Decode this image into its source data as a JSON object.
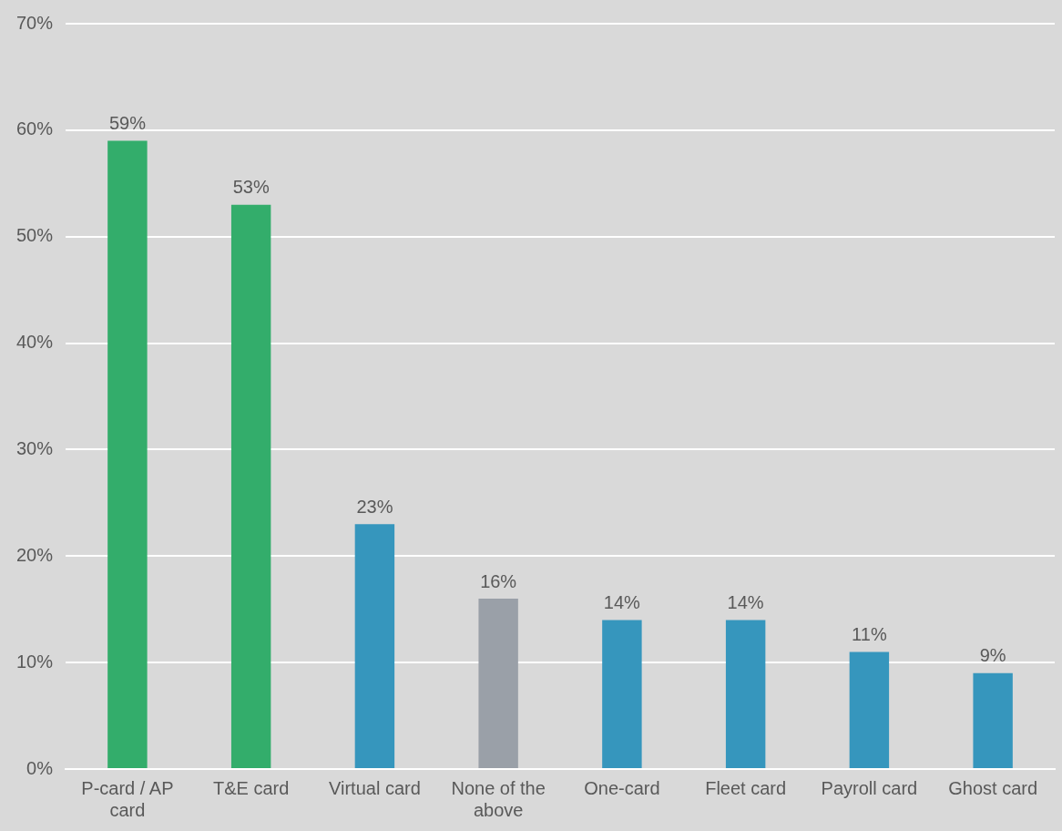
{
  "chart_data": {
    "type": "bar",
    "categories": [
      "P-card / AP card",
      "T&E card",
      "Virtual card",
      "None of the above",
      "One-card",
      "Fleet card",
      "Payroll card",
      "Ghost card"
    ],
    "values": [
      59,
      53,
      23,
      16,
      14,
      14,
      11,
      9
    ],
    "colors": [
      "#33ad6b",
      "#33ad6b",
      "#3696bd",
      "#9aa0a8",
      "#3696bd",
      "#3696bd",
      "#3696bd",
      "#3696bd"
    ],
    "value_labels": [
      "59%",
      "53%",
      "23%",
      "16%",
      "14%",
      "14%",
      "11%",
      "9%"
    ],
    "ylim": [
      0,
      70
    ],
    "yticks": [
      {
        "value": 0,
        "label": "0%"
      },
      {
        "value": 10,
        "label": "10%"
      },
      {
        "value": 20,
        "label": "20%"
      },
      {
        "value": 30,
        "label": "30%"
      },
      {
        "value": 40,
        "label": "40%"
      },
      {
        "value": 50,
        "label": "50%"
      },
      {
        "value": 60,
        "label": "60%"
      },
      {
        "value": 70,
        "label": "70%"
      }
    ],
    "grid": "y",
    "legend": false
  }
}
